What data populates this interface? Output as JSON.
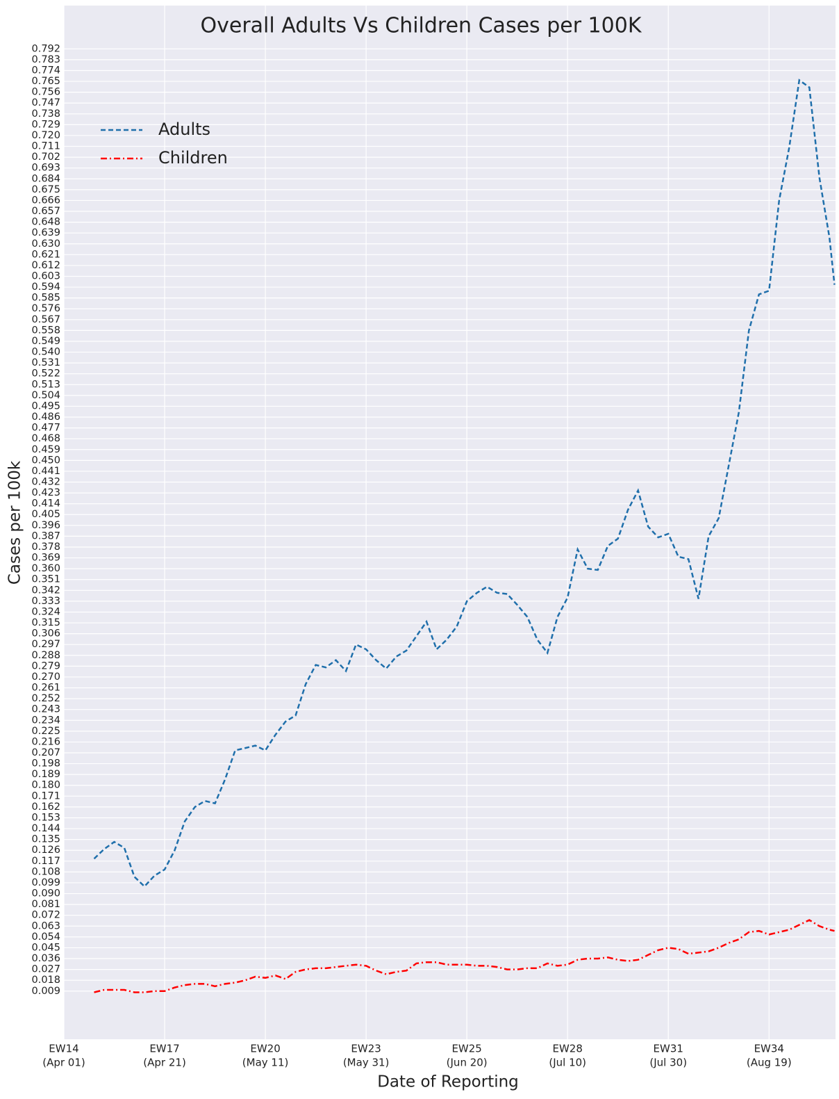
{
  "chart_data": {
    "type": "line",
    "title": "Overall Adults Vs Children Cases per 100K",
    "x_label": "Date of Reporting",
    "y_label": "Cases per 100k",
    "x": [
      6,
      8,
      10,
      12,
      14,
      16,
      18,
      20,
      22,
      24,
      26,
      28,
      30,
      32,
      34,
      36,
      38,
      40,
      42,
      44,
      46,
      48,
      50,
      52,
      54,
      56,
      58,
      60,
      62,
      64,
      66,
      68,
      70,
      72,
      74,
      76,
      78,
      80,
      82,
      84,
      86,
      88,
      90,
      92,
      94,
      96,
      98,
      100,
      102,
      104,
      106,
      108,
      110,
      112,
      114,
      116,
      118,
      120,
      122,
      124,
      126,
      128,
      130,
      132,
      134,
      136,
      138,
      140,
      142,
      144,
      146,
      148,
      150,
      152,
      153
    ],
    "series": [
      {
        "name": "Adults",
        "color": "#1f6fab",
        "linestyle": "dashed",
        "values": [
          0.119,
          0.127,
          0.133,
          0.128,
          0.104,
          0.096,
          0.105,
          0.11,
          0.126,
          0.15,
          0.162,
          0.167,
          0.165,
          0.185,
          0.209,
          0.211,
          0.213,
          0.209,
          0.222,
          0.233,
          0.238,
          0.264,
          0.28,
          0.278,
          0.284,
          0.275,
          0.297,
          0.293,
          0.284,
          0.277,
          0.287,
          0.292,
          0.304,
          0.316,
          0.293,
          0.301,
          0.312,
          0.333,
          0.34,
          0.345,
          0.34,
          0.339,
          0.33,
          0.32,
          0.301,
          0.29,
          0.32,
          0.336,
          0.376,
          0.36,
          0.359,
          0.379,
          0.385,
          0.409,
          0.425,
          0.395,
          0.386,
          0.389,
          0.37,
          0.368,
          0.335,
          0.387,
          0.402,
          0.446,
          0.49,
          0.558,
          0.588,
          0.591,
          0.666,
          0.71,
          0.766,
          0.76,
          0.685,
          0.635,
          0.596
        ]
      },
      {
        "name": "Children",
        "color": "#ff0000",
        "linestyle": "dashdot",
        "values": [
          0.008,
          0.01,
          0.01,
          0.01,
          0.008,
          0.008,
          0.009,
          0.009,
          0.012,
          0.014,
          0.015,
          0.015,
          0.013,
          0.015,
          0.016,
          0.018,
          0.021,
          0.02,
          0.022,
          0.019,
          0.025,
          0.027,
          0.028,
          0.028,
          0.029,
          0.03,
          0.031,
          0.03,
          0.026,
          0.023,
          0.025,
          0.026,
          0.032,
          0.033,
          0.033,
          0.031,
          0.031,
          0.031,
          0.03,
          0.03,
          0.029,
          0.027,
          0.027,
          0.028,
          0.028,
          0.032,
          0.03,
          0.031,
          0.035,
          0.036,
          0.036,
          0.037,
          0.035,
          0.034,
          0.035,
          0.039,
          0.043,
          0.045,
          0.044,
          0.04,
          0.041,
          0.042,
          0.045,
          0.049,
          0.052,
          0.058,
          0.059,
          0.056,
          0.058,
          0.06,
          0.064,
          0.068,
          0.063,
          0.06,
          0.059
        ]
      }
    ],
    "xlim": [
      0,
      153.2
    ],
    "xticks": [
      {
        "value": 0,
        "label": [
          "EW14",
          "(Apr 01)"
        ]
      },
      {
        "value": 20,
        "label": [
          "EW17",
          "(Apr 21)"
        ]
      },
      {
        "value": 40,
        "label": [
          "EW20",
          "(May 11)"
        ]
      },
      {
        "value": 60,
        "label": [
          "EW23",
          "(May 31)"
        ]
      },
      {
        "value": 80,
        "label": [
          "EW25",
          "(Jun 20)"
        ]
      },
      {
        "value": 100,
        "label": [
          "EW28",
          "(Jul 10)"
        ]
      },
      {
        "value": 120,
        "label": [
          "EW31",
          "(Jul 30)"
        ]
      },
      {
        "value": 140,
        "label": [
          "EW34",
          "(Aug 19)"
        ]
      }
    ],
    "ylim": [
      -0.031,
      0.828
    ],
    "yticks": [
      0.009,
      0.018,
      0.027,
      0.036,
      0.045,
      0.054,
      0.063,
      0.072,
      0.081,
      {
        "value": 0.09,
        "label": "0.090"
      },
      0.099,
      0.108,
      0.117,
      0.126,
      0.135,
      0.144,
      0.153,
      0.162,
      0.171,
      {
        "value": 0.18,
        "label": "0.180"
      },
      0.189,
      0.198,
      0.207,
      0.216,
      0.225,
      0.234,
      0.243,
      0.252,
      0.261,
      {
        "value": 0.27,
        "label": "0.270"
      },
      0.279,
      0.288,
      0.297,
      0.306,
      0.315,
      0.324,
      0.333,
      0.342,
      0.351,
      {
        "value": 0.36,
        "label": "0.360"
      },
      0.369,
      0.378,
      0.387,
      0.396,
      0.405,
      0.414,
      0.423,
      0.432,
      0.441,
      {
        "value": 0.45,
        "label": "0.450"
      },
      0.459,
      0.468,
      0.477,
      0.486,
      0.495,
      0.504,
      0.513,
      0.522,
      0.531,
      {
        "value": 0.54,
        "label": "0.540"
      },
      0.549,
      0.558,
      0.567,
      0.576,
      0.585,
      0.594,
      0.603,
      0.612,
      0.621,
      {
        "value": 0.63,
        "label": "0.630"
      },
      0.639,
      0.648,
      0.657,
      0.666,
      0.675,
      0.684,
      0.693,
      0.702,
      0.711,
      {
        "value": 0.72,
        "label": "0.720"
      },
      0.729,
      0.738,
      0.747,
      0.756,
      0.765,
      0.774,
      0.783,
      0.792
    ],
    "grid": true,
    "legend": "upper left"
  }
}
